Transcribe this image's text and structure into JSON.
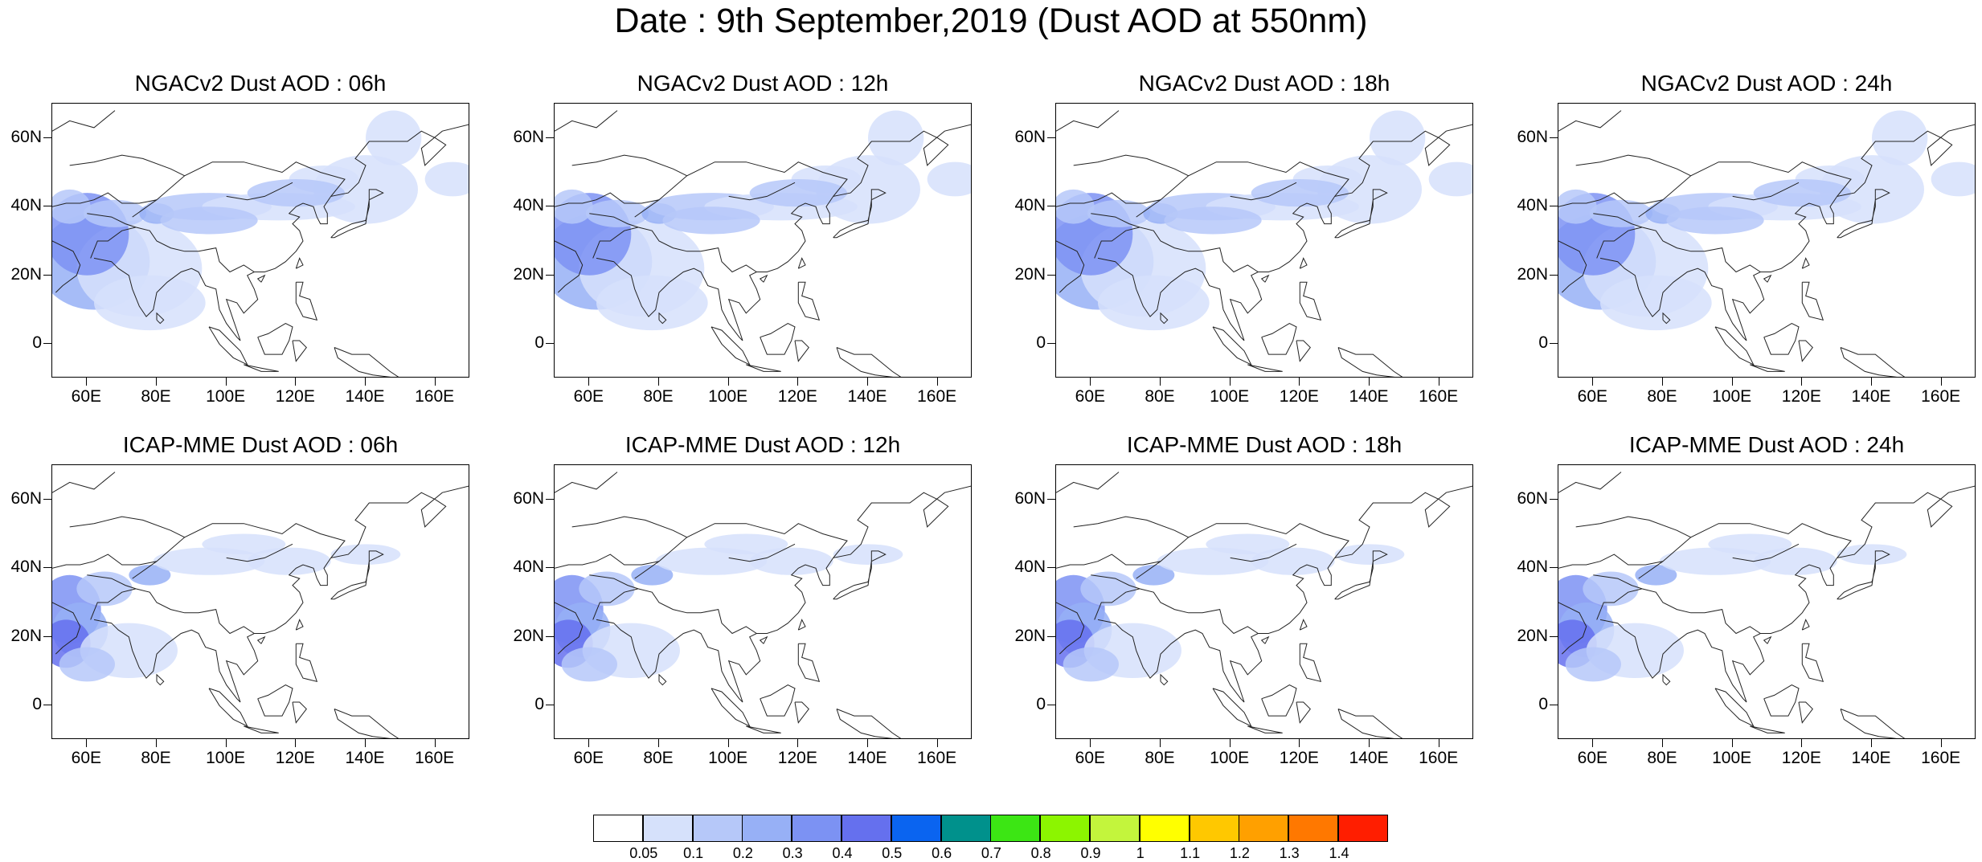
{
  "title": "Date : 9th September,2019 (Dust AOD at 550nm)",
  "panels": [
    {
      "title": "NGACv2 Dust AOD : 06h",
      "model": "NGACv2",
      "hour": "06h"
    },
    {
      "title": "NGACv2 Dust AOD : 12h",
      "model": "NGACv2",
      "hour": "12h"
    },
    {
      "title": "NGACv2 Dust AOD : 18h",
      "model": "NGACv2",
      "hour": "18h"
    },
    {
      "title": "NGACv2 Dust AOD : 24h",
      "model": "NGACv2",
      "hour": "24h"
    },
    {
      "title": "ICAP-MME Dust AOD : 06h",
      "model": "ICAP-MME",
      "hour": "06h"
    },
    {
      "title": "ICAP-MME Dust AOD : 12h",
      "model": "ICAP-MME",
      "hour": "12h"
    },
    {
      "title": "ICAP-MME Dust AOD : 18h",
      "model": "ICAP-MME",
      "hour": "18h"
    },
    {
      "title": "ICAP-MME Dust AOD : 24h",
      "model": "ICAP-MME",
      "hour": "24h"
    }
  ],
  "axes": {
    "lon_ticks": [
      "60E",
      "80E",
      "100E",
      "120E",
      "140E",
      "160E"
    ],
    "lat_ticks": [
      "60N",
      "40N",
      "20N",
      "0"
    ],
    "lon_values": [
      60,
      80,
      100,
      120,
      140,
      160
    ],
    "lat_values": [
      60,
      40,
      20,
      0
    ],
    "lon_range": [
      50,
      170
    ],
    "lat_range": [
      -10,
      70
    ]
  },
  "colorbar": {
    "labels": [
      "0.05",
      "0.1",
      "0.2",
      "0.3",
      "0.4",
      "0.5",
      "0.6",
      "0.7",
      "0.8",
      "0.9",
      "1",
      "1.1",
      "1.2",
      "1.3",
      "1.4"
    ],
    "colors": [
      "#ffffff",
      "#d6e1fb",
      "#b6c8f9",
      "#97b0f6",
      "#7c92f3",
      "#6570ee",
      "#0a64f0",
      "#00918c",
      "#3ce614",
      "#8cf500",
      "#c3f53c",
      "#ffff00",
      "#ffc800",
      "#ffa000",
      "#ff7800",
      "#ff1e00"
    ]
  }
}
